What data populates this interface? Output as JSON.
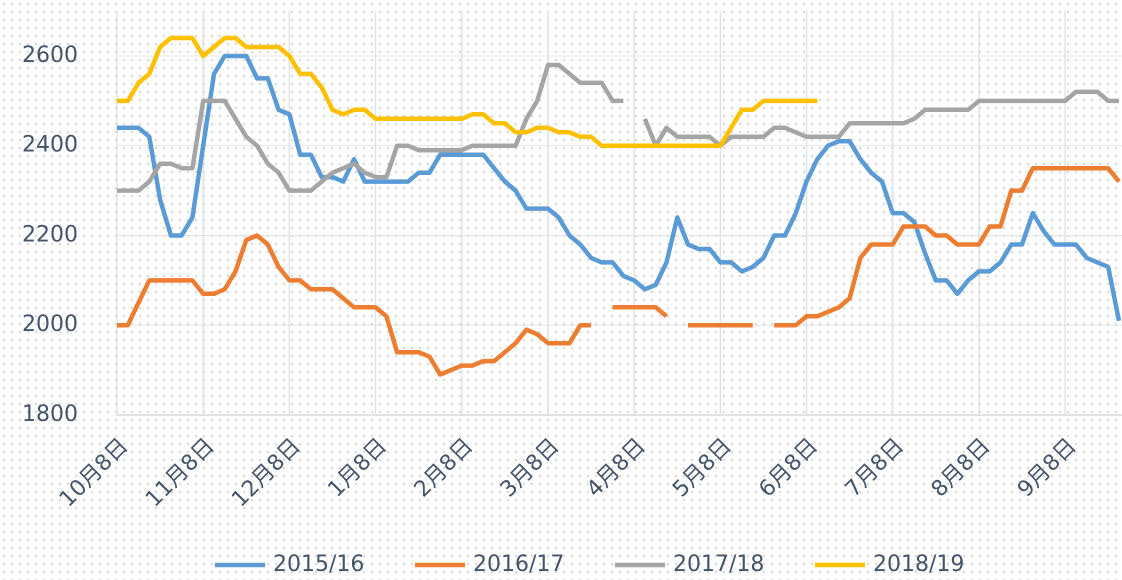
{
  "chart_data": {
    "type": "line",
    "categories": [
      "10月8日",
      null,
      null,
      null,
      null,
      null,
      null,
      null,
      "11月8日",
      null,
      null,
      null,
      null,
      null,
      null,
      null,
      "12月8日",
      null,
      null,
      null,
      null,
      null,
      null,
      null,
      "1月8日",
      null,
      null,
      null,
      null,
      null,
      null,
      null,
      "2月8日",
      null,
      null,
      null,
      null,
      null,
      null,
      null,
      "3月8日",
      null,
      null,
      null,
      null,
      null,
      null,
      null,
      "4月8日",
      null,
      null,
      null,
      null,
      null,
      null,
      null,
      "5月8日",
      null,
      null,
      null,
      null,
      null,
      null,
      null,
      "6月8日",
      null,
      null,
      null,
      null,
      null,
      null,
      null,
      "7月8日",
      null,
      null,
      null,
      null,
      null,
      null,
      null,
      "8月8日",
      null,
      null,
      null,
      null,
      null,
      null,
      null,
      "9月8日",
      null,
      null,
      null,
      null,
      null
    ],
    "series": [
      {
        "name": "2015/16",
        "color": "#5b9bd5",
        "values": [
          2440,
          2440,
          2440,
          2420,
          2280,
          2200,
          2200,
          2240,
          2400,
          2560,
          2600,
          2600,
          2600,
          2550,
          2550,
          2480,
          2470,
          2380,
          2380,
          2330,
          2330,
          2320,
          2370,
          2320,
          2320,
          2320,
          2320,
          2320,
          2340,
          2340,
          2380,
          2380,
          2380,
          2380,
          2380,
          2350,
          2320,
          2300,
          2260,
          2260,
          2260,
          2240,
          2200,
          2180,
          2150,
          2140,
          2140,
          2110,
          2100,
          2080,
          2090,
          2140,
          2240,
          2180,
          2170,
          2170,
          2140,
          2140,
          2120,
          2130,
          2150,
          2200,
          2200,
          2250,
          2320,
          2370,
          2400,
          2410,
          2410,
          2370,
          2340,
          2320,
          2250,
          2250,
          2230,
          2160,
          2100,
          2100,
          2070,
          2100,
          2120,
          2120,
          2140,
          2180,
          2180,
          2250,
          2210,
          2180,
          2180,
          2180,
          2150,
          2140,
          2130,
          2010
        ]
      },
      {
        "name": "2016/17",
        "color": "#ed7d31",
        "values": [
          2000,
          2000,
          2050,
          2100,
          2100,
          2100,
          2100,
          2100,
          2070,
          2070,
          2080,
          2120,
          2190,
          2200,
          2180,
          2130,
          2100,
          2100,
          2080,
          2080,
          2080,
          2060,
          2040,
          2040,
          2040,
          2020,
          1940,
          1940,
          1940,
          1930,
          1890,
          1900,
          1910,
          1910,
          1920,
          1920,
          1940,
          1960,
          1990,
          1980,
          1960,
          1960,
          1960,
          2000,
          2000,
          null,
          2040,
          2040,
          2040,
          2040,
          2040,
          2020,
          null,
          2000,
          2000,
          2000,
          2000,
          2000,
          2000,
          2000,
          null,
          2000,
          2000,
          2000,
          2020,
          2020,
          2030,
          2040,
          2060,
          2150,
          2180,
          2180,
          2180,
          2220,
          2220,
          2220,
          2200,
          2200,
          2180,
          2180,
          2180,
          2220,
          2220,
          2300,
          2300,
          2350,
          2350,
          2350,
          2350,
          2350,
          2350,
          2350,
          2350,
          2320
        ]
      },
      {
        "name": "2017/18",
        "color": "#a5a5a5",
        "values": [
          2300,
          2300,
          2300,
          2320,
          2360,
          2360,
          2350,
          2350,
          2500,
          2500,
          2500,
          2460,
          2420,
          2400,
          2360,
          2340,
          2300,
          2300,
          2300,
          2320,
          2340,
          2350,
          2360,
          2340,
          2330,
          2330,
          2400,
          2400,
          2390,
          2390,
          2390,
          2390,
          2390,
          2400,
          2400,
          2400,
          2400,
          2400,
          2460,
          2500,
          2580,
          2580,
          2560,
          2540,
          2540,
          2540,
          2500,
          2500,
          null,
          2460,
          2400,
          2440,
          2420,
          2420,
          2420,
          2420,
          2400,
          2420,
          2420,
          2420,
          2420,
          2440,
          2440,
          2430,
          2420,
          2420,
          2420,
          2420,
          2450,
          2450,
          2450,
          2450,
          2450,
          2450,
          2460,
          2480,
          2480,
          2480,
          2480,
          2480,
          2500,
          2500,
          2500,
          2500,
          2500,
          2500,
          2500,
          2500,
          2500,
          2520,
          2520,
          2520,
          2500,
          2500
        ]
      },
      {
        "name": "2018/19",
        "color": "#ffc000",
        "values": [
          2500,
          2500,
          2540,
          2560,
          2620,
          2640,
          2640,
          2640,
          2600,
          2620,
          2640,
          2640,
          2620,
          2620,
          2620,
          2620,
          2600,
          2560,
          2560,
          2530,
          2480,
          2470,
          2480,
          2480,
          2460,
          2460,
          2460,
          2460,
          2460,
          2460,
          2460,
          2460,
          2460,
          2470,
          2470,
          2450,
          2450,
          2430,
          2430,
          2440,
          2440,
          2430,
          2430,
          2420,
          2420,
          2400,
          2400,
          2400,
          2400,
          2400,
          2400,
          2400,
          2400,
          2400,
          2400,
          2400,
          2400,
          2440,
          2480,
          2480,
          2500,
          2500,
          2500,
          2500,
          2500,
          2500,
          null,
          null,
          null,
          null,
          null,
          null,
          null,
          null,
          null,
          null,
          null,
          null,
          null,
          null,
          null,
          null,
          null,
          null,
          null,
          null,
          null,
          null,
          null,
          null,
          null,
          null,
          null,
          null
        ]
      }
    ],
    "ylim": [
      1800,
      2700
    ],
    "yticks": [
      1800,
      2000,
      2200,
      2400,
      2600
    ],
    "grid": true,
    "legend": "bottom"
  }
}
